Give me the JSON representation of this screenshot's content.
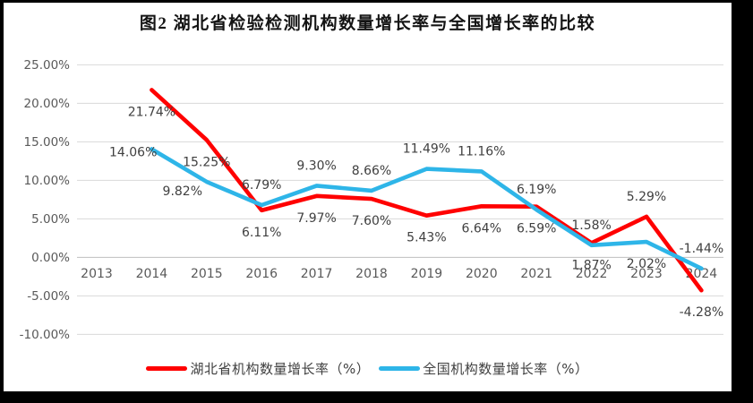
{
  "title": "图2  湖北省检验检测机构数量增长率与全国增长率的比较",
  "chart_data": {
    "type": "line",
    "title": "图2  湖北省检验检测机构数量增长率与全国增长率的比较",
    "categories": [
      "2013",
      "2014",
      "2015",
      "2016",
      "2017",
      "2018",
      "2019",
      "2020",
      "2021",
      "2022",
      "2023",
      "2024"
    ],
    "series": [
      {
        "name": "湖北省机构数量增长率（%）",
        "color": "#FF0000",
        "values": [
          null,
          21.74,
          15.25,
          6.11,
          7.97,
          7.6,
          5.43,
          6.64,
          6.59,
          1.87,
          5.29,
          -4.28
        ],
        "label_positions": [
          null,
          "below",
          "below",
          "below",
          "below",
          "below",
          "below",
          "below",
          "below",
          "below",
          "above",
          "below"
        ]
      },
      {
        "name": "全国机构数量增长率（%）",
        "color": "#2EB5E8",
        "values": [
          null,
          14.06,
          9.82,
          6.79,
          9.3,
          8.66,
          11.49,
          11.16,
          6.19,
          1.58,
          2.02,
          -1.44
        ],
        "label_positions": [
          null,
          "left",
          "below-left",
          "above",
          "above",
          "above",
          "above",
          "above",
          "above",
          "above",
          "below",
          "above"
        ]
      }
    ],
    "ylim": [
      -10,
      25
    ],
    "ytick_step": 5,
    "ytick_labels": [
      "25.00%",
      "20.00%",
      "15.00%",
      "10.00%",
      "5.00%",
      "0.00%",
      "-5.00%",
      "-10.00%"
    ],
    "grid": true,
    "legend_position": "bottom",
    "colors": {
      "axis_text": "#595959",
      "grid_line": "#D9D9D9",
      "zero_line": "#BFBFBF",
      "data_label": "#404040",
      "title_text": "#141414",
      "background": "#FFFFFF",
      "frame_border": "#000000"
    }
  }
}
